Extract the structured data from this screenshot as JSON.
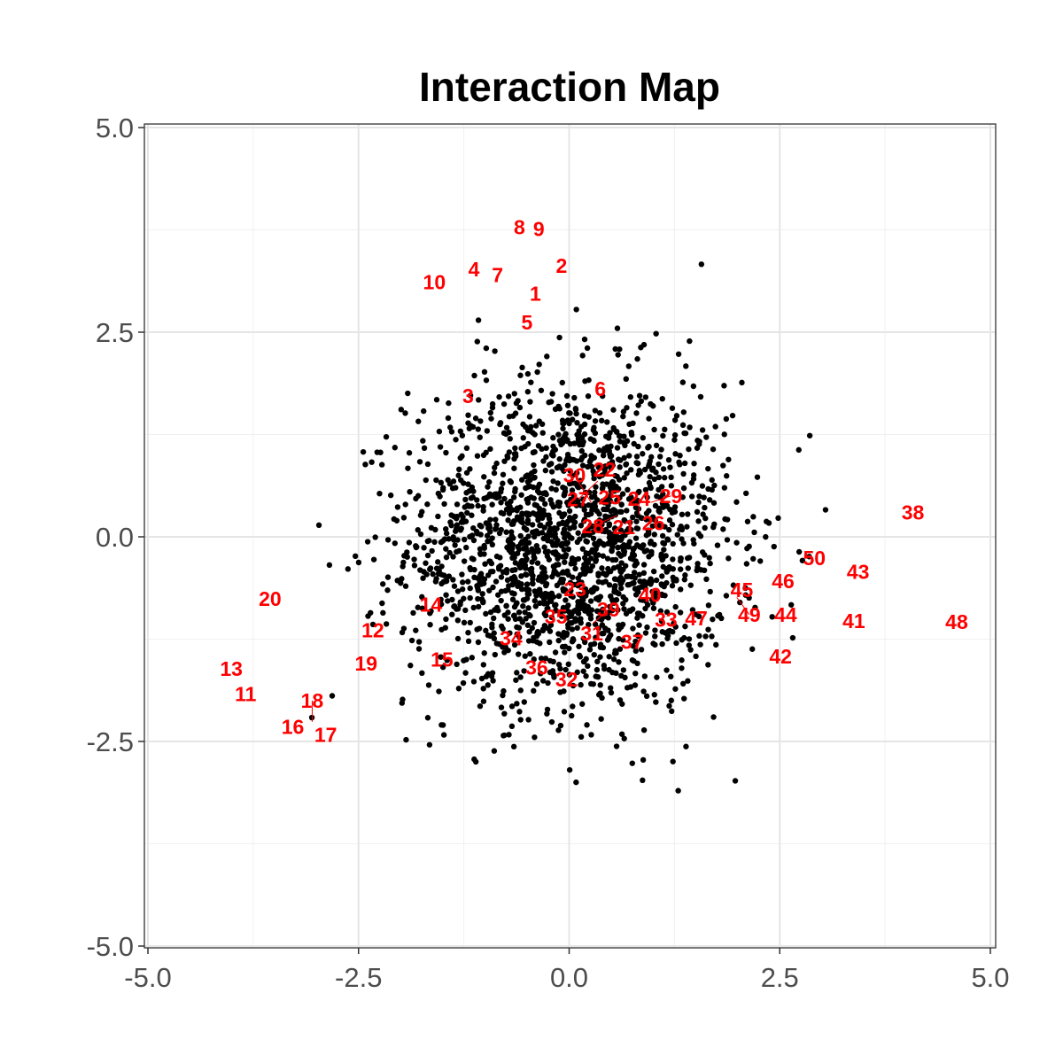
{
  "chart_data": {
    "type": "scatter",
    "title": "Interaction Map",
    "xlabel": "",
    "ylabel": "",
    "xlim": [
      -5,
      5
    ],
    "ylim": [
      -5,
      5
    ],
    "x_ticks": [
      -5.0,
      -2.5,
      0.0,
      2.5,
      5.0
    ],
    "y_ticks": [
      -5.0,
      -2.5,
      0.0,
      2.5,
      5.0
    ],
    "x_tick_labels": [
      "-5.0",
      "-2.5",
      "0.0",
      "2.5",
      "5.0"
    ],
    "y_tick_labels": [
      "-5.0",
      "-2.5",
      "0.0",
      "2.5",
      "5.0"
    ],
    "grid": true,
    "point_color": "#000000",
    "label_color": "#ff0000",
    "background_points": {
      "description": "approx. 2000 unlabeled points, roughly bivariate normal",
      "n": 2000,
      "mean": [
        0.0,
        -0.1
      ],
      "sd": [
        0.95,
        1.0
      ]
    },
    "labeled_points": [
      {
        "label": "1",
        "x": -0.4,
        "y": 2.97
      },
      {
        "label": "2",
        "x": -0.09,
        "y": 3.31
      },
      {
        "label": "3",
        "x": -1.2,
        "y": 1.72
      },
      {
        "label": "4",
        "x": -1.13,
        "y": 3.27
      },
      {
        "label": "5",
        "x": -0.5,
        "y": 2.62
      },
      {
        "label": "6",
        "x": 0.37,
        "y": 1.81
      },
      {
        "label": "7",
        "x": -0.85,
        "y": 3.2
      },
      {
        "label": "8",
        "x": -0.59,
        "y": 3.78
      },
      {
        "label": "9",
        "x": -0.36,
        "y": 3.76
      },
      {
        "label": "10",
        "x": -1.6,
        "y": 3.11
      },
      {
        "label": "11",
        "x": -3.84,
        "y": -1.92
      },
      {
        "label": "12",
        "x": -2.33,
        "y": -1.14
      },
      {
        "label": "13",
        "x": -4.01,
        "y": -1.61
      },
      {
        "label": "14",
        "x": -1.64,
        "y": -0.83
      },
      {
        "label": "15",
        "x": -1.51,
        "y": -1.5
      },
      {
        "label": "16",
        "x": -3.28,
        "y": -2.32
      },
      {
        "label": "17",
        "x": -2.89,
        "y": -2.42
      },
      {
        "label": "18",
        "x": -3.05,
        "y": -2.26
      },
      {
        "label": "19",
        "x": -2.41,
        "y": -1.55
      },
      {
        "label": "20",
        "x": -3.55,
        "y": -0.76
      },
      {
        "label": "21",
        "x": 0.65,
        "y": 0.12
      },
      {
        "label": "22",
        "x": 0.42,
        "y": 0.82
      },
      {
        "label": "23",
        "x": 0.07,
        "y": -0.64
      },
      {
        "label": "24",
        "x": 0.83,
        "y": 0.27
      },
      {
        "label": "25",
        "x": 0.57,
        "y": 0.39
      },
      {
        "label": "26",
        "x": 1.0,
        "y": 0.23
      },
      {
        "label": "27",
        "x": 0.34,
        "y": 0.68
      },
      {
        "label": "28",
        "x": 0.57,
        "y": 0.26
      },
      {
        "label": "29",
        "x": 0.97,
        "y": 0.42
      },
      {
        "label": "30",
        "x": 0.26,
        "y": 0.42
      },
      {
        "label": "31",
        "x": 0.27,
        "y": -1.18
      },
      {
        "label": "32",
        "x": -0.03,
        "y": -1.74
      },
      {
        "label": "33",
        "x": 1.15,
        "y": -1.01
      },
      {
        "label": "34",
        "x": -0.69,
        "y": -1.24
      },
      {
        "label": "35",
        "x": -0.2,
        "y": -0.93
      },
      {
        "label": "36",
        "x": -0.34,
        "y": -1.55
      },
      {
        "label": "37",
        "x": 0.75,
        "y": -1.28
      },
      {
        "label": "38",
        "x": 4.08,
        "y": 0.3
      },
      {
        "label": "39",
        "x": 0.28,
        "y": -1.06
      },
      {
        "label": "40",
        "x": 0.96,
        "y": -0.84
      },
      {
        "label": "41",
        "x": 3.38,
        "y": -1.03
      },
      {
        "label": "42",
        "x": 2.51,
        "y": -1.46
      },
      {
        "label": "43",
        "x": 3.43,
        "y": -0.43
      },
      {
        "label": "44",
        "x": 2.57,
        "y": -0.95
      },
      {
        "label": "45",
        "x": 2.05,
        "y": -0.65
      },
      {
        "label": "46",
        "x": 2.54,
        "y": -0.54
      },
      {
        "label": "47",
        "x": 1.42,
        "y": -1.09
      },
      {
        "label": "48",
        "x": 4.6,
        "y": -1.04
      },
      {
        "label": "49",
        "x": 1.99,
        "y": -0.74
      },
      {
        "label": "50",
        "x": 2.91,
        "y": -0.26
      }
    ]
  }
}
